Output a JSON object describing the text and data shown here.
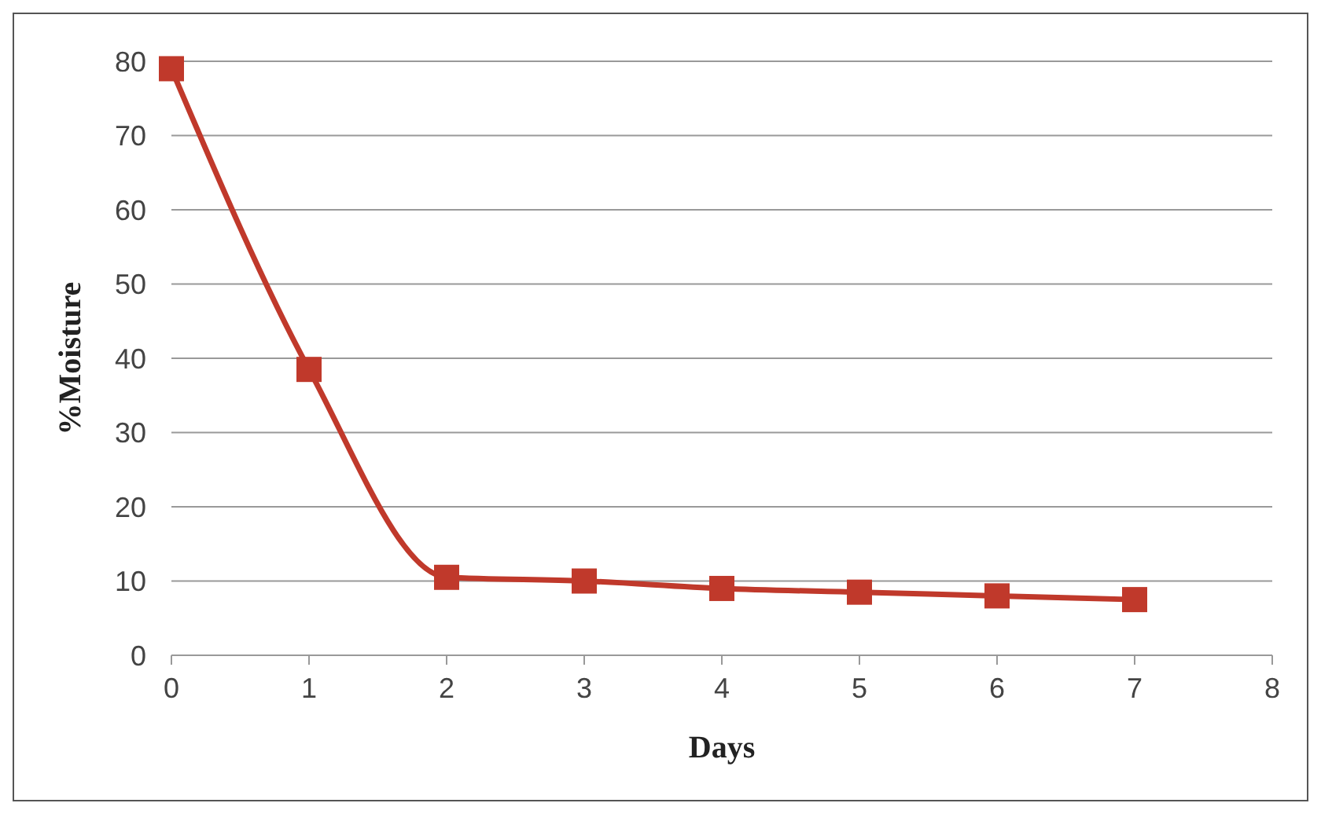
{
  "chart_data": {
    "type": "line",
    "xlabel": "Days",
    "ylabel": "%Moisture",
    "x": [
      0,
      1,
      2,
      3,
      4,
      5,
      6,
      7
    ],
    "series": [
      {
        "color": "#c0392b",
        "values": [
          79,
          38.5,
          10.5,
          10,
          9,
          8.5,
          8,
          7.5
        ]
      }
    ],
    "xlim": [
      0,
      8
    ],
    "xticks": [
      0,
      1,
      2,
      3,
      4,
      5,
      6,
      7,
      8
    ],
    "ylim": [
      0,
      80
    ],
    "yticks": [
      0,
      10,
      20,
      30,
      40,
      50,
      60,
      70,
      80
    ],
    "grid": "y",
    "marker": "square",
    "line_style": "solid"
  }
}
